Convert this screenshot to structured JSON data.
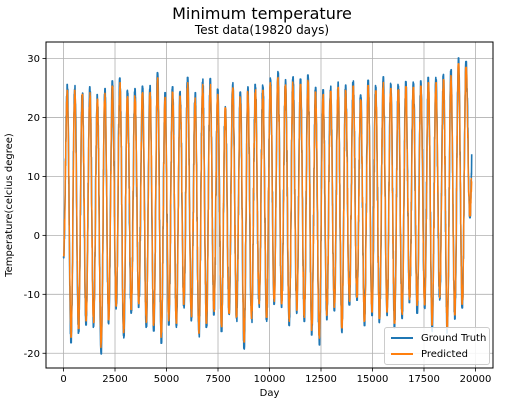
{
  "chart_data": {
    "type": "line",
    "title": "Minimum temperature",
    "subtitle": "Test data(19820 days)",
    "xlabel": "Day",
    "ylabel": "Temperature(celcius degree)",
    "xlim": [
      -850,
      20850
    ],
    "ylim": [
      -22.5,
      32.8
    ],
    "xticks": [
      0,
      2500,
      5000,
      7500,
      10000,
      12500,
      15000,
      17500,
      20000
    ],
    "yticks": [
      -20,
      -10,
      0,
      10,
      20,
      30
    ],
    "grid": true,
    "legend_position": "lower-right",
    "x_extent": [
      0,
      19820
    ],
    "period_days": 365.25,
    "series": [
      {
        "name": "Ground Truth",
        "color": "#1f77b4",
        "yearly_max": [
          25.6,
          25.4,
          24.7,
          25.2,
          23.9,
          24.9,
          26.2,
          26.7,
          24.6,
          24.9,
          25.3,
          25.4,
          27.6,
          24.2,
          25.2,
          24.4,
          26.8,
          24.2,
          26.5,
          26.6,
          24.8,
          22.3,
          25.9,
          24.3,
          25.2,
          25.6,
          25.5,
          26.7,
          27.8,
          26.4,
          26.9,
          26.5,
          27.2,
          25.1,
          24.7,
          25.3,
          26.0,
          25.5,
          26.2,
          23.8,
          26.3,
          25.4,
          26.9,
          25.8,
          25.6,
          26.1,
          26.0,
          26.2,
          26.8,
          26.8,
          27.3,
          28.1,
          30.1,
          29.5,
          20.5
        ],
        "yearly_min": [
          -3.8,
          -18.2,
          -16.6,
          -15.2,
          -15.6,
          -20.1,
          -15.0,
          -12.5,
          -17.4,
          -13.2,
          -12.2,
          -15.6,
          -16.2,
          -18.3,
          -15.2,
          -15.6,
          -12.3,
          -14.5,
          -17.5,
          -15.6,
          -13.5,
          -16.3,
          -13.8,
          -14.6,
          -19.3,
          -14.8,
          -12.2,
          -14.6,
          -11.7,
          -12.2,
          -15.3,
          -13.3,
          -14.6,
          -16.9,
          -18.6,
          -14.3,
          -12.8,
          -16.5,
          -11.8,
          -11.0,
          -15.3,
          -13.6,
          -14.8,
          -13.6,
          -15.7,
          -14.1,
          -11.4,
          -13.2,
          -12.4,
          -16.3,
          -11.1,
          -16.6,
          -14.2,
          -12.3,
          3.0
        ]
      },
      {
        "name": "Predicted",
        "color": "#ff7f0e",
        "yearly_max": [
          24.6,
          24.6,
          23.9,
          24.2,
          23.1,
          24.1,
          25.3,
          25.9,
          23.8,
          24.0,
          24.4,
          24.5,
          26.7,
          23.4,
          24.3,
          23.6,
          25.9,
          23.3,
          25.6,
          25.6,
          23.9,
          21.6,
          25.0,
          23.5,
          24.4,
          24.7,
          24.6,
          25.9,
          26.8,
          25.5,
          26.0,
          25.6,
          26.3,
          24.3,
          23.9,
          24.4,
          25.1,
          24.6,
          25.3,
          23.0,
          25.4,
          24.5,
          26.0,
          24.9,
          24.7,
          25.2,
          25.1,
          25.3,
          25.9,
          25.9,
          26.4,
          27.1,
          29.1,
          28.5,
          19.8
        ],
        "yearly_min": [
          -3.5,
          -17.3,
          -15.8,
          -14.5,
          -14.8,
          -19.0,
          -14.3,
          -12.0,
          -16.5,
          -12.6,
          -11.6,
          -14.8,
          -15.4,
          -17.3,
          -14.5,
          -14.9,
          -11.7,
          -13.8,
          -16.6,
          -14.9,
          -12.9,
          -15.5,
          -13.2,
          -13.9,
          -18.1,
          -14.1,
          -11.6,
          -13.9,
          -11.2,
          -11.6,
          -14.6,
          -12.7,
          -13.9,
          -16.1,
          -17.5,
          -13.6,
          -12.2,
          -15.7,
          -11.2,
          -10.5,
          -14.6,
          -13.0,
          -14.1,
          -13.0,
          -14.9,
          -13.4,
          -10.9,
          -12.6,
          -11.8,
          -15.5,
          -10.6,
          -15.8,
          -13.5,
          -11.7,
          3.3
        ]
      }
    ]
  }
}
